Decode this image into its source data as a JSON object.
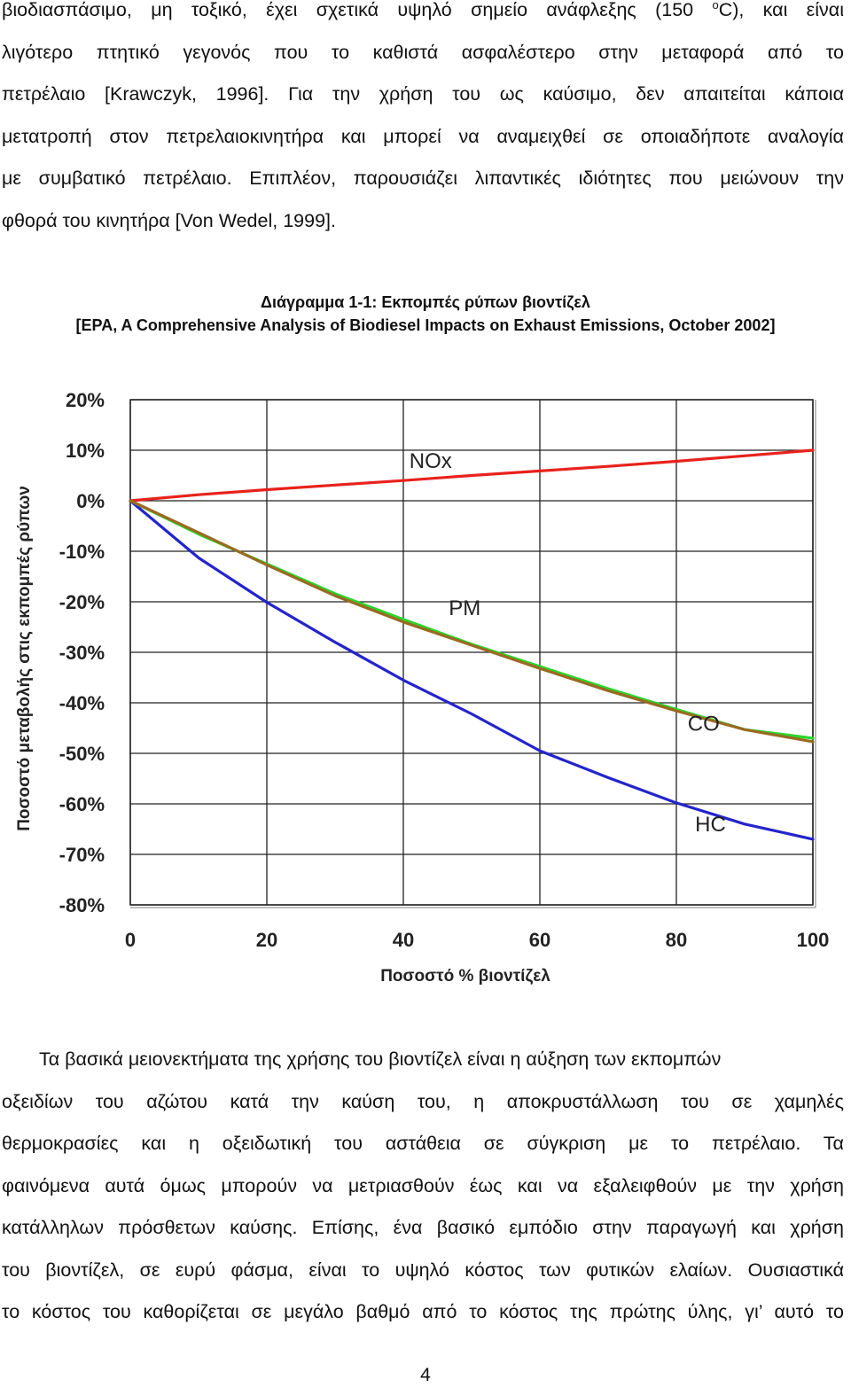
{
  "para1": {
    "l1a": "βιοδιασπάσιμο, μη τοξικό, έχει σχετικά υψηλό σημείο ανάφλεξης (150 ",
    "l1sup": "ο",
    "l1b": "C), και είναι",
    "l2": "λιγότερο πτητικό γεγονός που το καθιστά ασφαλέστερο στην μεταφορά από το",
    "l3": "πετρέλαιο [Krawczyk, 1996]. Για την χρήση του ως καύσιμο, δεν απαιτείται κάποια",
    "l4": "μετατροπή στον πετρελαιοκινητήρα και μπορεί να αναμειχθεί σε οποιαδήποτε αναλογία",
    "l5": "με συμβατικό πετρέλαιο. Επιπλέον, παρουσιάζει λιπαντικές ιδιότητες που μειώνουν την",
    "l6": "φθορά του κινητήρα [Von Wedel, 1999]."
  },
  "caption": {
    "title": "Διάγραμμα 1-1: Εκπομπές ρύπων βιοντίζελ",
    "source": "[EPA, A Comprehensive Analysis of Biodiesel Impacts on Exhaust Emissions, October 2002]"
  },
  "chart_data": {
    "type": "line",
    "title": "",
    "xlabel": "Ποσοστό % βιοντίζελ",
    "ylabel": "Ποσοστό μεταβολής στις εκπομπές ρύπων",
    "xlim": [
      0,
      100
    ],
    "ylim": [
      -80,
      20
    ],
    "xticks": [
      0,
      20,
      40,
      60,
      80,
      100
    ],
    "xtick_labels": [
      "0",
      "20",
      "40",
      "60",
      "80",
      "100"
    ],
    "yticks": [
      20,
      10,
      0,
      -10,
      -20,
      -30,
      -40,
      -50,
      -60,
      -70,
      -80
    ],
    "ytick_labels": [
      "20%",
      "10%",
      "0%",
      "-10%",
      "-20%",
      "-30%",
      "-40%",
      "-50%",
      "-60%",
      "-70%",
      "-80%"
    ],
    "grid": true,
    "x": [
      0,
      10,
      20,
      30,
      40,
      50,
      60,
      70,
      80,
      90,
      100
    ],
    "series": [
      {
        "name": "NOx",
        "color": "#e8221c",
        "label_at": [
          44,
          6.5
        ],
        "values": [
          0,
          1.2,
          2.2,
          3.1,
          4.0,
          5.0,
          5.9,
          6.8,
          7.8,
          8.9,
          10.0
        ]
      },
      {
        "name": "PM",
        "color": "#2ad62a",
        "label_at": [
          49,
          -22.6
        ],
        "values": [
          0,
          -6.6,
          -12.5,
          -18.4,
          -23.5,
          -28.4,
          -32.8,
          -37.2,
          -41.3,
          -45.3,
          -47.0
        ]
      },
      {
        "name": "CO",
        "color": "#9a6a22",
        "label_at": [
          84,
          -45.5
        ],
        "values": [
          0,
          -6.3,
          -12.7,
          -18.8,
          -24.0,
          -28.6,
          -33.2,
          -37.6,
          -41.6,
          -45.3,
          -47.7
        ]
      },
      {
        "name": "HC",
        "color": "#2424cc",
        "label_at": [
          85,
          -65.4
        ],
        "values": [
          0,
          -11.3,
          -20.1,
          -28.0,
          -35.5,
          -42.2,
          -49.5,
          -54.8,
          -59.8,
          -64.0,
          -67.0
        ]
      }
    ]
  },
  "para2": {
    "l1": "Τα βασικά μειονεκτήματα της χρήσης του βιοντίζελ είναι η αύξηση των εκπομπών",
    "l2": "οξειδίων του αζώτου κατά την καύση του, η αποκρυστάλλωση του σε χαμηλές",
    "l3": "θερμοκρασίες και η οξειδωτική του αστάθεια σε σύγκριση με το πετρέλαιο. Τα",
    "l4": "φαινόμενα αυτά όμως μπορούν να μετριασθούν έως και να εξαλειφθούν με την χρήση",
    "l5": "κατάλληλων πρόσθετων καύσης. Επίσης, ένα βασικό εμπόδιο στην παραγωγή και χρήση",
    "l6": "του βιοντίζελ, σε ευρύ φάσμα, είναι το υψηλό κόστος των φυτικών ελαίων. Ουσιαστικά",
    "l7": "το κόστος του καθορίζεται σε μεγάλο βαθμό από το κόστος της πρώτης ύλης, γι’ αυτό το"
  },
  "page_number": "4"
}
